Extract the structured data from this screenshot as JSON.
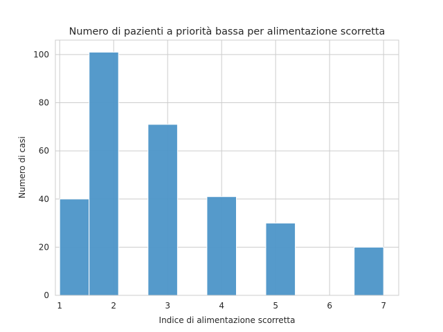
{
  "chart_data": {
    "type": "histogram",
    "title": "Numero di pazienti a priorità bassa per alimentazione scorretta",
    "xlabel": "Indice di alimentazione scorretta",
    "ylabel": "Numero di casi",
    "xlim": [
      0.92,
      7.28
    ],
    "ylim": [
      0,
      106
    ],
    "x_ticks": [
      "1",
      "2",
      "3",
      "4",
      "5",
      "6",
      "7"
    ],
    "y_ticks": [
      "0",
      "20",
      "40",
      "60",
      "80",
      "100"
    ],
    "grid": true,
    "bin_width": 0.545,
    "bars": [
      {
        "x_start": 1.0,
        "x_end": 1.545,
        "value": 40
      },
      {
        "x_start": 1.545,
        "x_end": 2.09,
        "value": 101
      },
      {
        "x_start": 2.09,
        "x_end": 2.636,
        "value": 0
      },
      {
        "x_start": 2.636,
        "x_end": 3.182,
        "value": 71
      },
      {
        "x_start": 3.182,
        "x_end": 3.727,
        "value": 0
      },
      {
        "x_start": 3.727,
        "x_end": 4.273,
        "value": 41
      },
      {
        "x_start": 4.273,
        "x_end": 4.818,
        "value": 0
      },
      {
        "x_start": 4.818,
        "x_end": 5.364,
        "value": 30
      },
      {
        "x_start": 5.364,
        "x_end": 5.909,
        "value": 0
      },
      {
        "x_start": 5.909,
        "x_end": 6.455,
        "value": 0
      },
      {
        "x_start": 6.455,
        "x_end": 7.0,
        "value": 20
      }
    ],
    "bar_color": "#4c95c8"
  }
}
